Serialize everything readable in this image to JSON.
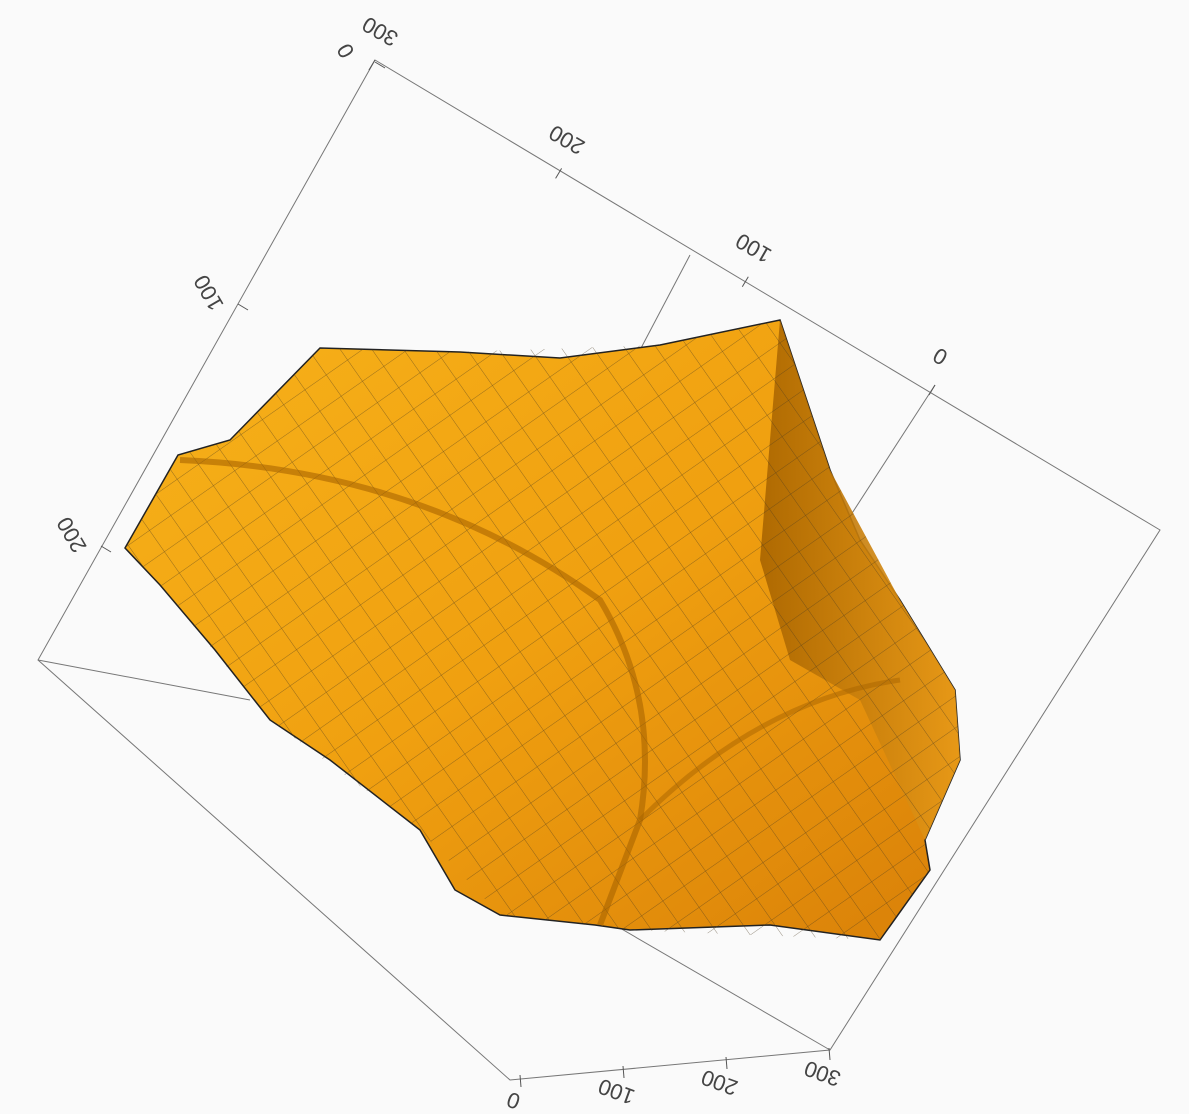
{
  "chart_data": {
    "type": "surface3d",
    "axes": [
      {
        "ticks": [
          0,
          100,
          200,
          300
        ]
      },
      {
        "ticks": [
          0,
          100,
          200
        ]
      },
      {
        "ticks": [
          0,
          100,
          200,
          300
        ]
      }
    ]
  }
}
